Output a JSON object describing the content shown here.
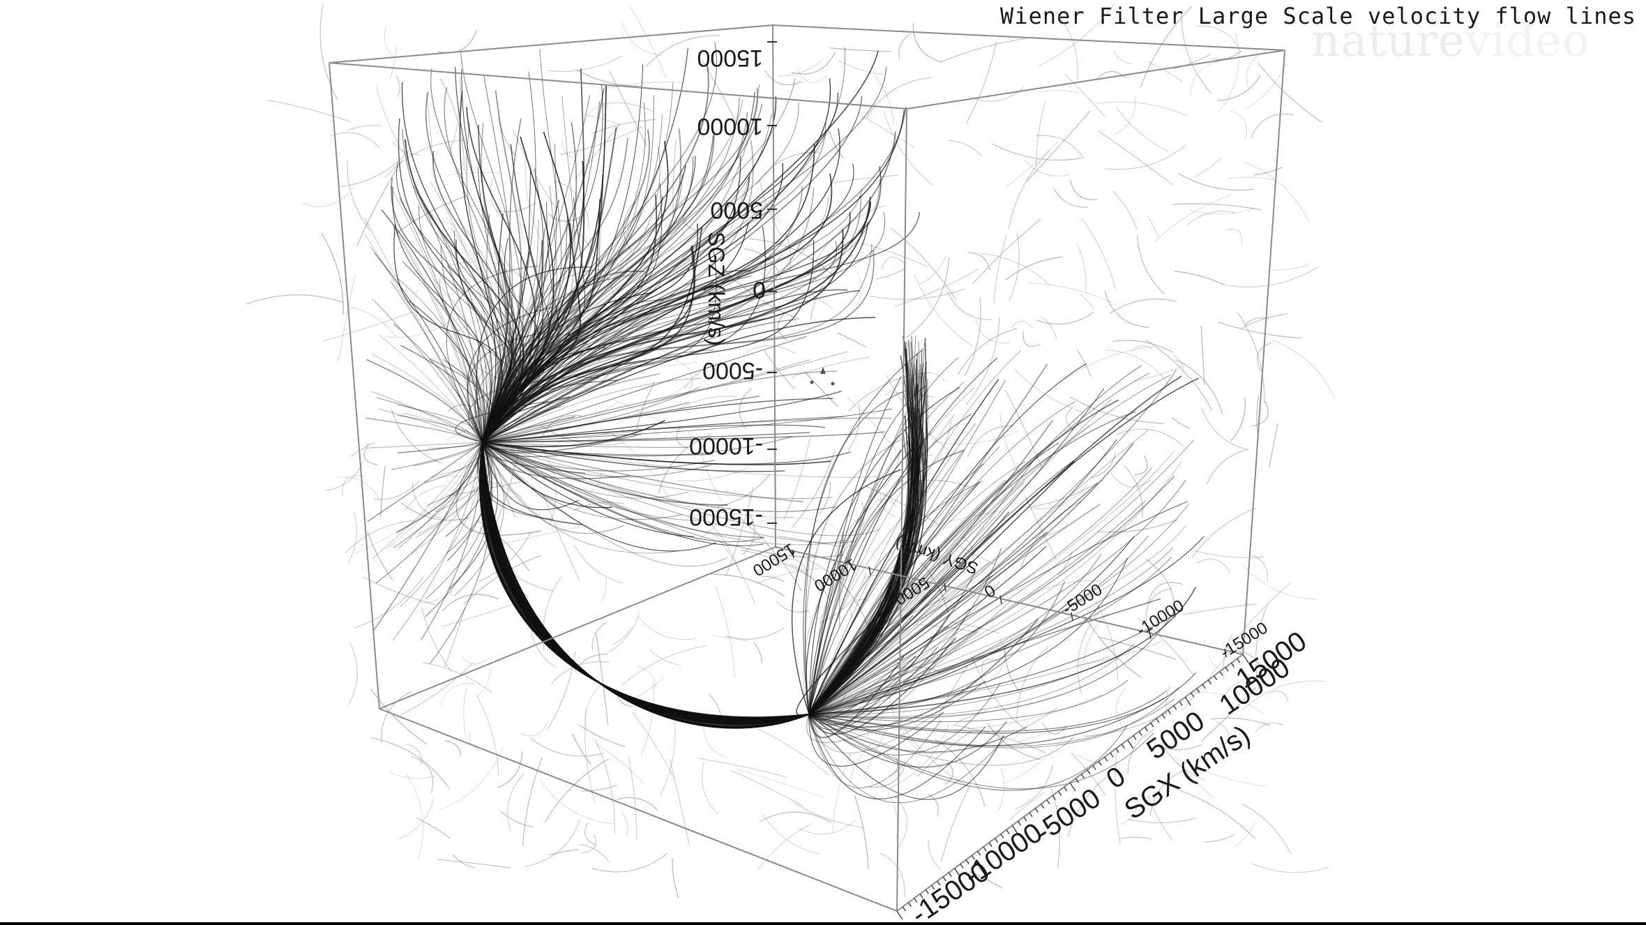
{
  "video": {
    "title": "Wiener Filter Large Scale velocity flow lines",
    "watermark": {
      "part1": "nature",
      "part2": "video"
    }
  },
  "axes": {
    "z": {
      "label": "SGZ (km/s)",
      "ticks": [
        "15000",
        "10000",
        "5000",
        "0",
        "-5000",
        "-10000",
        "-15000"
      ]
    },
    "y": {
      "label": "SGY (km/s)",
      "ticks": [
        "15000",
        "10000",
        "5000",
        "0",
        "-5000",
        "-10000",
        "-15000"
      ]
    },
    "x": {
      "label": "SGX (km/s)",
      "ticks": [
        "-15000",
        "-10000",
        "-5000",
        "0",
        "5000",
        "10000",
        "15000"
      ]
    }
  },
  "colors": {
    "background": "#ffffff",
    "flow_lines": "#111111",
    "box_edges": "#8a8a8a"
  }
}
